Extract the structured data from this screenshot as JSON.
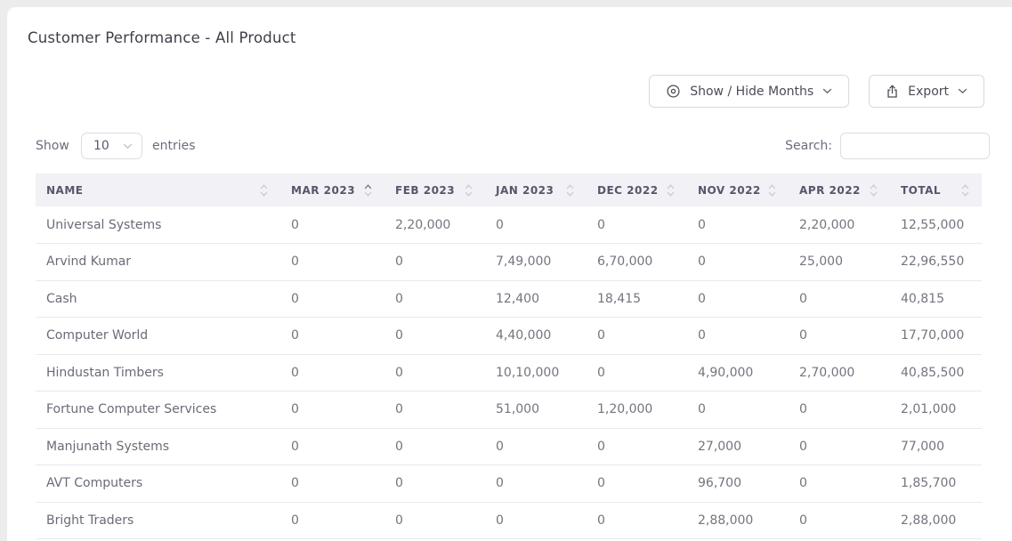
{
  "page": {
    "title": "Customer Performance - All Product"
  },
  "toolbar": {
    "show_hide_button": "Show / Hide Months",
    "export_button": "Export"
  },
  "list_controls": {
    "show_label": "Show",
    "page_size": "10",
    "entries_label": "entries",
    "search_label": "Search:",
    "search_value": ""
  },
  "icons": {
    "show_hide": "eye-icon",
    "export": "upload-icon",
    "button_caret": "chevron-down-icon",
    "page_size_caret": "chevron-down-icon",
    "column_sort": "sort-carets-icon"
  },
  "colors": {
    "page_background": "#ececec",
    "card_background": "#ffffff",
    "header_background": "#f1f1f6",
    "header_text": "#56566b",
    "body_text": "#74747f",
    "title_text": "#3e3e4a",
    "row_border": "#e9e9ef",
    "button_border": "#d9d9de",
    "sort_active": "#72727f",
    "sort_inactive": "#c9c9d5"
  },
  "table": {
    "columns": [
      {
        "label": "NAME",
        "sort": "none"
      },
      {
        "label": "MAR 2023",
        "sort": "asc"
      },
      {
        "label": "FEB 2023",
        "sort": "none"
      },
      {
        "label": "JAN 2023",
        "sort": "none"
      },
      {
        "label": "DEC 2022",
        "sort": "none"
      },
      {
        "label": "NOV 2022",
        "sort": "none"
      },
      {
        "label": "APR 2022",
        "sort": "none"
      },
      {
        "label": "TOTAL",
        "sort": "none"
      }
    ],
    "rows": [
      {
        "name": "Universal Systems",
        "values": [
          "0",
          "2,20,000",
          "0",
          "0",
          "0",
          "2,20,000",
          "12,55,000"
        ]
      },
      {
        "name": "Arvind Kumar",
        "values": [
          "0",
          "0",
          "7,49,000",
          "6,70,000",
          "0",
          "25,000",
          "22,96,550"
        ]
      },
      {
        "name": "Cash",
        "values": [
          "0",
          "0",
          "12,400",
          "18,415",
          "0",
          "0",
          "40,815"
        ]
      },
      {
        "name": "Computer World",
        "values": [
          "0",
          "0",
          "4,40,000",
          "0",
          "0",
          "0",
          "17,70,000"
        ]
      },
      {
        "name": "Hindustan Timbers",
        "values": [
          "0",
          "0",
          "10,10,000",
          "0",
          "4,90,000",
          "2,70,000",
          "40,85,500"
        ]
      },
      {
        "name": "Fortune Computer Services",
        "values": [
          "0",
          "0",
          "51,000",
          "1,20,000",
          "0",
          "0",
          "2,01,000"
        ]
      },
      {
        "name": "Manjunath Systems",
        "values": [
          "0",
          "0",
          "0",
          "0",
          "27,000",
          "0",
          "77,000"
        ]
      },
      {
        "name": "AVT Computers",
        "values": [
          "0",
          "0",
          "0",
          "0",
          "96,700",
          "0",
          "1,85,700"
        ]
      },
      {
        "name": "Bright Traders",
        "values": [
          "0",
          "0",
          "0",
          "0",
          "2,88,000",
          "0",
          "2,88,000"
        ]
      }
    ]
  }
}
